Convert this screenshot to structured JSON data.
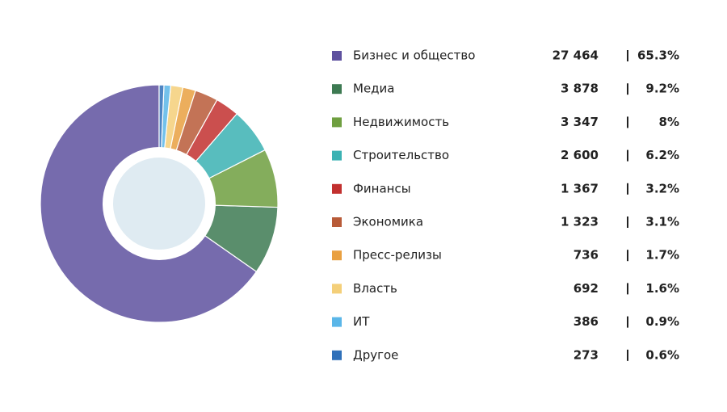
{
  "chart_data": {
    "type": "donut",
    "categories": [
      "Бизнес и общество",
      "Медиа",
      "Недвижимость",
      "Строительство",
      "Финансы",
      "Экономика",
      "Пресс-релизы",
      "Власть",
      "ИТ",
      "Другое"
    ],
    "values": [
      27464,
      3878,
      3347,
      2600,
      1367,
      1323,
      736,
      692,
      386,
      273
    ],
    "value_labels": [
      "27 464",
      "3 878",
      "3 347",
      "2 600",
      "1 367",
      "1 323",
      "736",
      "692",
      "386",
      "273"
    ],
    "shares": [
      65.3,
      9.2,
      8,
      6.2,
      3.2,
      3.1,
      1.7,
      1.6,
      0.9,
      0.6
    ],
    "share_labels": [
      "65.3%",
      "9.2%",
      "8%",
      "6.2%",
      "3.2%",
      "3.1%",
      "1.7%",
      "1.6%",
      "0.9%",
      "0.6%"
    ],
    "colors": [
      "#5e519f",
      "#3d7a52",
      "#6f9f40",
      "#3bb2b3",
      "#c2302f",
      "#b85b38",
      "#e9a041",
      "#f4cf79",
      "#5ab6e8",
      "#2f70b9"
    ],
    "direction": "counterclockwise"
  }
}
